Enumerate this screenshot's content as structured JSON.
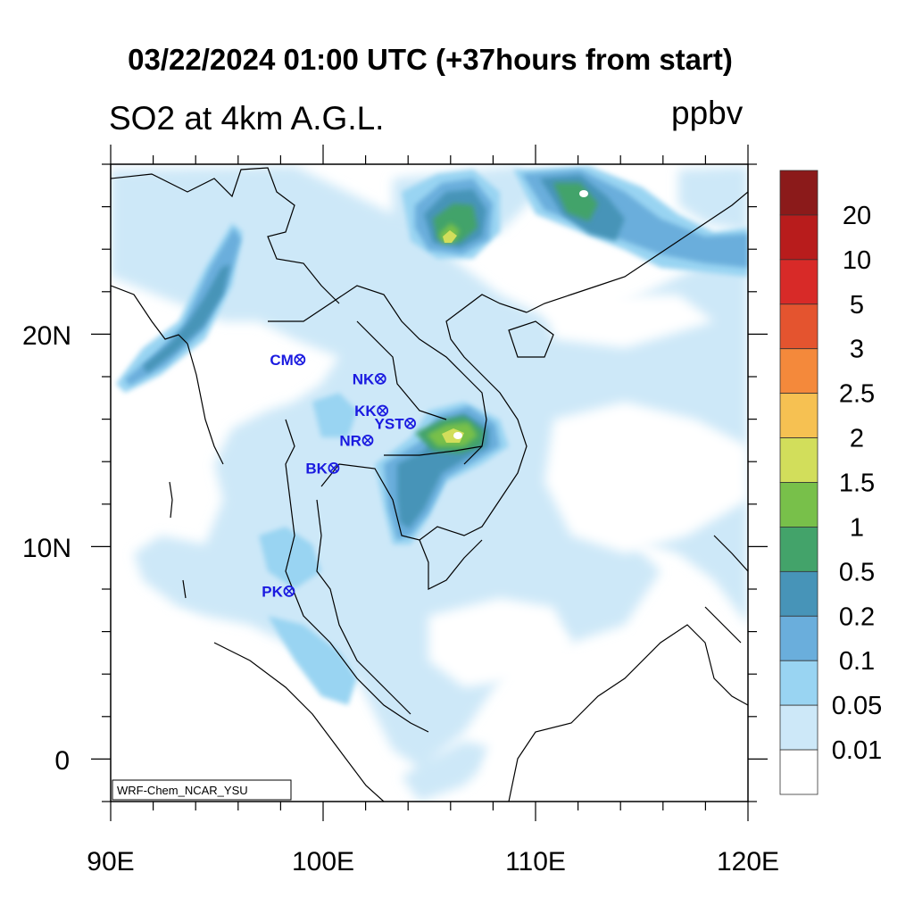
{
  "title": "03/22/2024 01:00 UTC (+37hours from start)",
  "subtitle": "SO2 at 4km A.G.L.",
  "units": "ppbv",
  "credit": "WRF-Chem_NCAR_YSU",
  "map": {
    "lon_range": [
      90,
      120
    ],
    "lat_range": [
      -2,
      28
    ],
    "x_ticks": [
      "90E",
      "100E",
      "110E",
      "120E"
    ],
    "y_ticks": [
      "20N",
      "10N",
      "0"
    ]
  },
  "colorbar": {
    "labels": [
      "20",
      "10",
      "5",
      "3",
      "2.5",
      "2",
      "1.5",
      "1",
      "0.5",
      "0.2",
      "0.1",
      "0.05",
      "0.01"
    ],
    "colors": [
      "#8b1a1a",
      "#b81c1c",
      "#d82a28",
      "#e4542f",
      "#f4893b",
      "#f6c152",
      "#d2de5b",
      "#78c04a",
      "#43a36a",
      "#4794b8",
      "#6aaedc",
      "#99d4f2",
      "#cde8f8",
      "#ffffff"
    ]
  },
  "stations": [
    {
      "name": "CM",
      "lon": 98.9,
      "lat": 18.8
    },
    {
      "name": "NK",
      "lon": 102.7,
      "lat": 17.9
    },
    {
      "name": "KK",
      "lon": 102.8,
      "lat": 16.4
    },
    {
      "name": "YST",
      "lon": 104.1,
      "lat": 15.8
    },
    {
      "name": "NR",
      "lon": 102.1,
      "lat": 15.0
    },
    {
      "name": "BK",
      "lon": 100.5,
      "lat": 13.7
    },
    {
      "name": "PK",
      "lon": 98.4,
      "lat": 7.9
    }
  ]
}
